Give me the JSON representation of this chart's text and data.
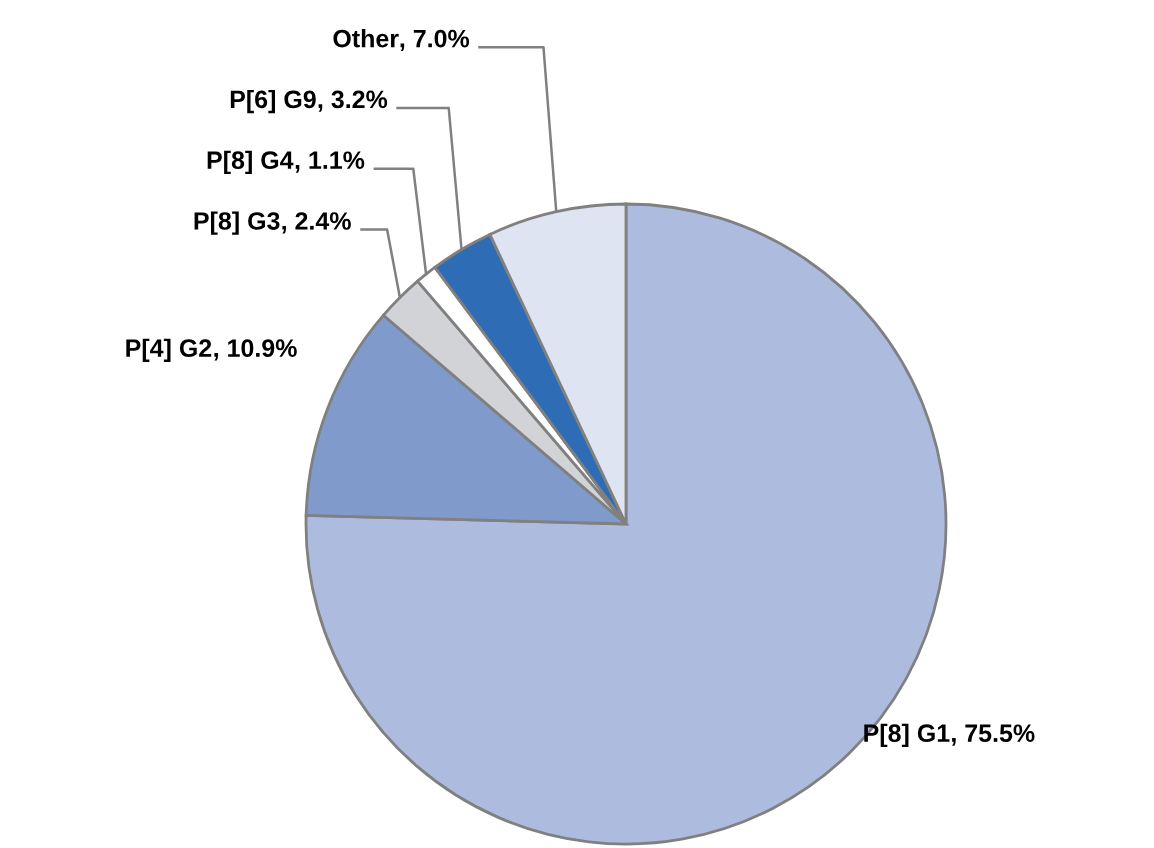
{
  "chart_data": {
    "type": "pie",
    "categories": [
      "P[8] G1",
      "P[4] G2",
      "P[8] G3",
      "P[8] G4",
      "P[6] G9",
      "Other"
    ],
    "values": [
      75.5,
      10.9,
      2.4,
      1.1,
      3.2,
      7.0
    ],
    "value_labels": [
      ", 75.5%",
      ", 10.9%",
      ", 2.4%",
      ", 1.1%",
      ", 3.2%",
      ", 7.0%"
    ],
    "colors": [
      "#adbbde",
      "#7f9acb",
      "#d1d3d6",
      "#ffffff",
      "#2e6db5",
      "#dfe4f2"
    ]
  }
}
